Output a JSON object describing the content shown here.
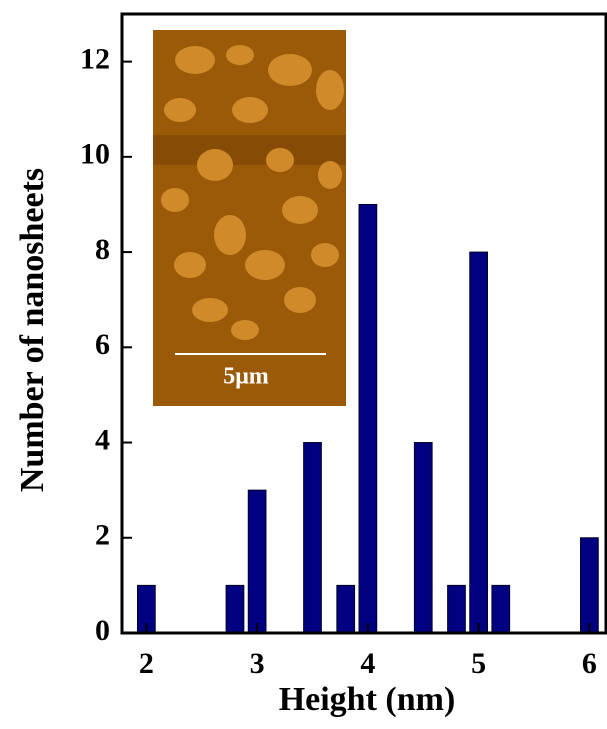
{
  "chart_data": {
    "type": "bar",
    "x_label": "Height (nm)",
    "y_label": "Number of nanosheets",
    "x": [
      2,
      2.8,
      3,
      3.5,
      3.8,
      4,
      4.5,
      4.8,
      5,
      5.2,
      6
    ],
    "values": [
      1,
      1,
      3,
      4,
      1,
      9,
      4,
      1,
      8,
      1,
      2
    ],
    "color": "#000080",
    "xlim": [
      1.78,
      6.15
    ],
    "xticks": [
      2,
      3,
      4,
      5,
      6
    ],
    "ylim": [
      0,
      13
    ],
    "yticks": [
      0,
      2,
      4,
      6,
      8,
      10,
      12
    ],
    "inset_label": "5μm"
  }
}
